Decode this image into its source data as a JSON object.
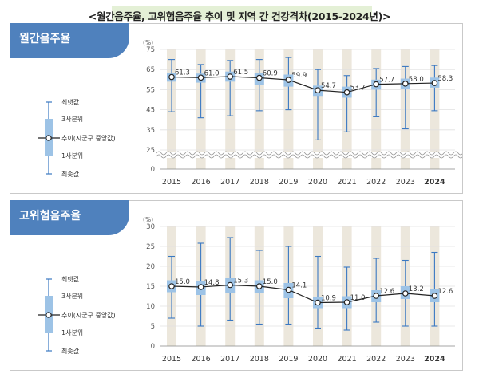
{
  "title": "<월간음주율, 고위험음주율 추이 및 지역 간 건강격차(2015-2024년)>",
  "colors": {
    "box": "#9dc3e6",
    "whisker": "#3a78c2",
    "line": "#222222",
    "highlight": "#e6dfd0",
    "header": "#4f81bd"
  },
  "legend": {
    "max": "최댓값",
    "q3": "3사분위",
    "median": "추이(시군구 중앙값)",
    "q1": "1사분위",
    "min": "최솟값"
  },
  "chart_data": [
    {
      "type": "box",
      "title": "월간음주율",
      "unit": "(%)",
      "categories": [
        "2015",
        "2016",
        "2017",
        "2018",
        "2019",
        "2020",
        "2021",
        "2022",
        "2023",
        "2024"
      ],
      "median_labels": [
        "61.3",
        "61.0",
        "61.5",
        "60.9",
        "59.9",
        "54.7",
        "53.7",
        "57.7",
        "58.0",
        "58.3"
      ],
      "median": [
        61.3,
        61.0,
        61.5,
        60.9,
        59.9,
        54.7,
        53.7,
        57.7,
        58.0,
        58.3
      ],
      "q1": [
        59,
        58.5,
        59,
        57.5,
        56.5,
        51.5,
        51,
        55,
        55.5,
        56
      ],
      "q3": [
        63.5,
        63,
        64,
        63.5,
        62.5,
        57,
        56.5,
        60,
        60.5,
        61
      ],
      "min": [
        44,
        41,
        42,
        44.5,
        45,
        30,
        34,
        41.5,
        35.5,
        44.5
      ],
      "max": [
        70,
        67.5,
        69.5,
        70,
        71,
        65,
        62,
        65.5,
        66.5,
        67
      ],
      "yticks": [
        "0",
        "25",
        "35",
        "45",
        "55",
        "65",
        "75"
      ],
      "ylim": [
        0,
        75
      ],
      "axis_break": true,
      "highlight_columns": [
        "2015",
        "2016",
        "2017",
        "2018",
        "2019",
        "2020",
        "2021",
        "2022",
        "2023",
        "2024"
      ]
    },
    {
      "type": "box",
      "title": "고위험음주율",
      "unit": "(%)",
      "categories": [
        "2015",
        "2016",
        "2017",
        "2018",
        "2019",
        "2020",
        "2021",
        "2022",
        "2023",
        "2024"
      ],
      "median_labels": [
        "15.0",
        "14.8",
        "15.3",
        "15.0",
        "14.1",
        "10.9",
        "11.0",
        "12.6",
        "13.2",
        "12.6"
      ],
      "median": [
        15.0,
        14.8,
        15.3,
        15.0,
        14.1,
        10.9,
        11.0,
        12.6,
        13.2,
        12.6
      ],
      "q1": [
        13.5,
        12.8,
        13.2,
        13.2,
        12.0,
        9.5,
        9.5,
        11.0,
        11.8,
        11.0
      ],
      "q3": [
        16.5,
        16.3,
        17.0,
        16.5,
        15.8,
        12.3,
        12.5,
        14.0,
        15.0,
        14.4
      ],
      "min": [
        7.0,
        5.0,
        6.5,
        5.5,
        5.5,
        4.5,
        4.0,
        6.0,
        5.0,
        5.0
      ],
      "max": [
        22.5,
        25.8,
        27.2,
        24.0,
        25.0,
        22.5,
        19.8,
        22.0,
        21.5,
        23.5
      ],
      "yticks": [
        "0",
        "5",
        "10",
        "15",
        "20",
        "25",
        "30"
      ],
      "ylim": [
        0,
        30
      ],
      "axis_break": false,
      "highlight_columns": [
        "2015",
        "2016",
        "2017",
        "2018",
        "2019",
        "2020",
        "2021",
        "2022",
        "2023",
        "2024"
      ]
    }
  ]
}
